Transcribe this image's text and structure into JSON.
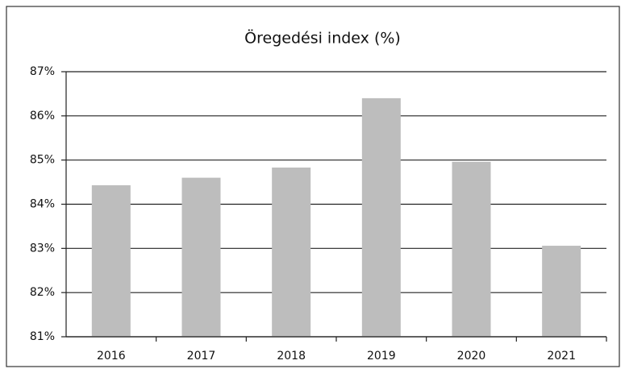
{
  "chart_data": {
    "type": "bar",
    "title": "Öregedési index (%)",
    "categories": [
      "2016",
      "2017",
      "2018",
      "2019",
      "2020",
      "2021"
    ],
    "values": [
      84.43,
      84.6,
      84.83,
      86.4,
      84.96,
      83.06
    ],
    "color": "#bdbdbd",
    "ylim": [
      81,
      87
    ],
    "yticks": [
      {
        "value": 81,
        "label": "81%"
      },
      {
        "value": 82,
        "label": "82%"
      },
      {
        "value": 83,
        "label": "83%"
      },
      {
        "value": 84,
        "label": "84%"
      },
      {
        "value": 85,
        "label": "85%"
      },
      {
        "value": 86,
        "label": "86%"
      },
      {
        "value": 87,
        "label": "87%"
      }
    ],
    "grid": true
  }
}
